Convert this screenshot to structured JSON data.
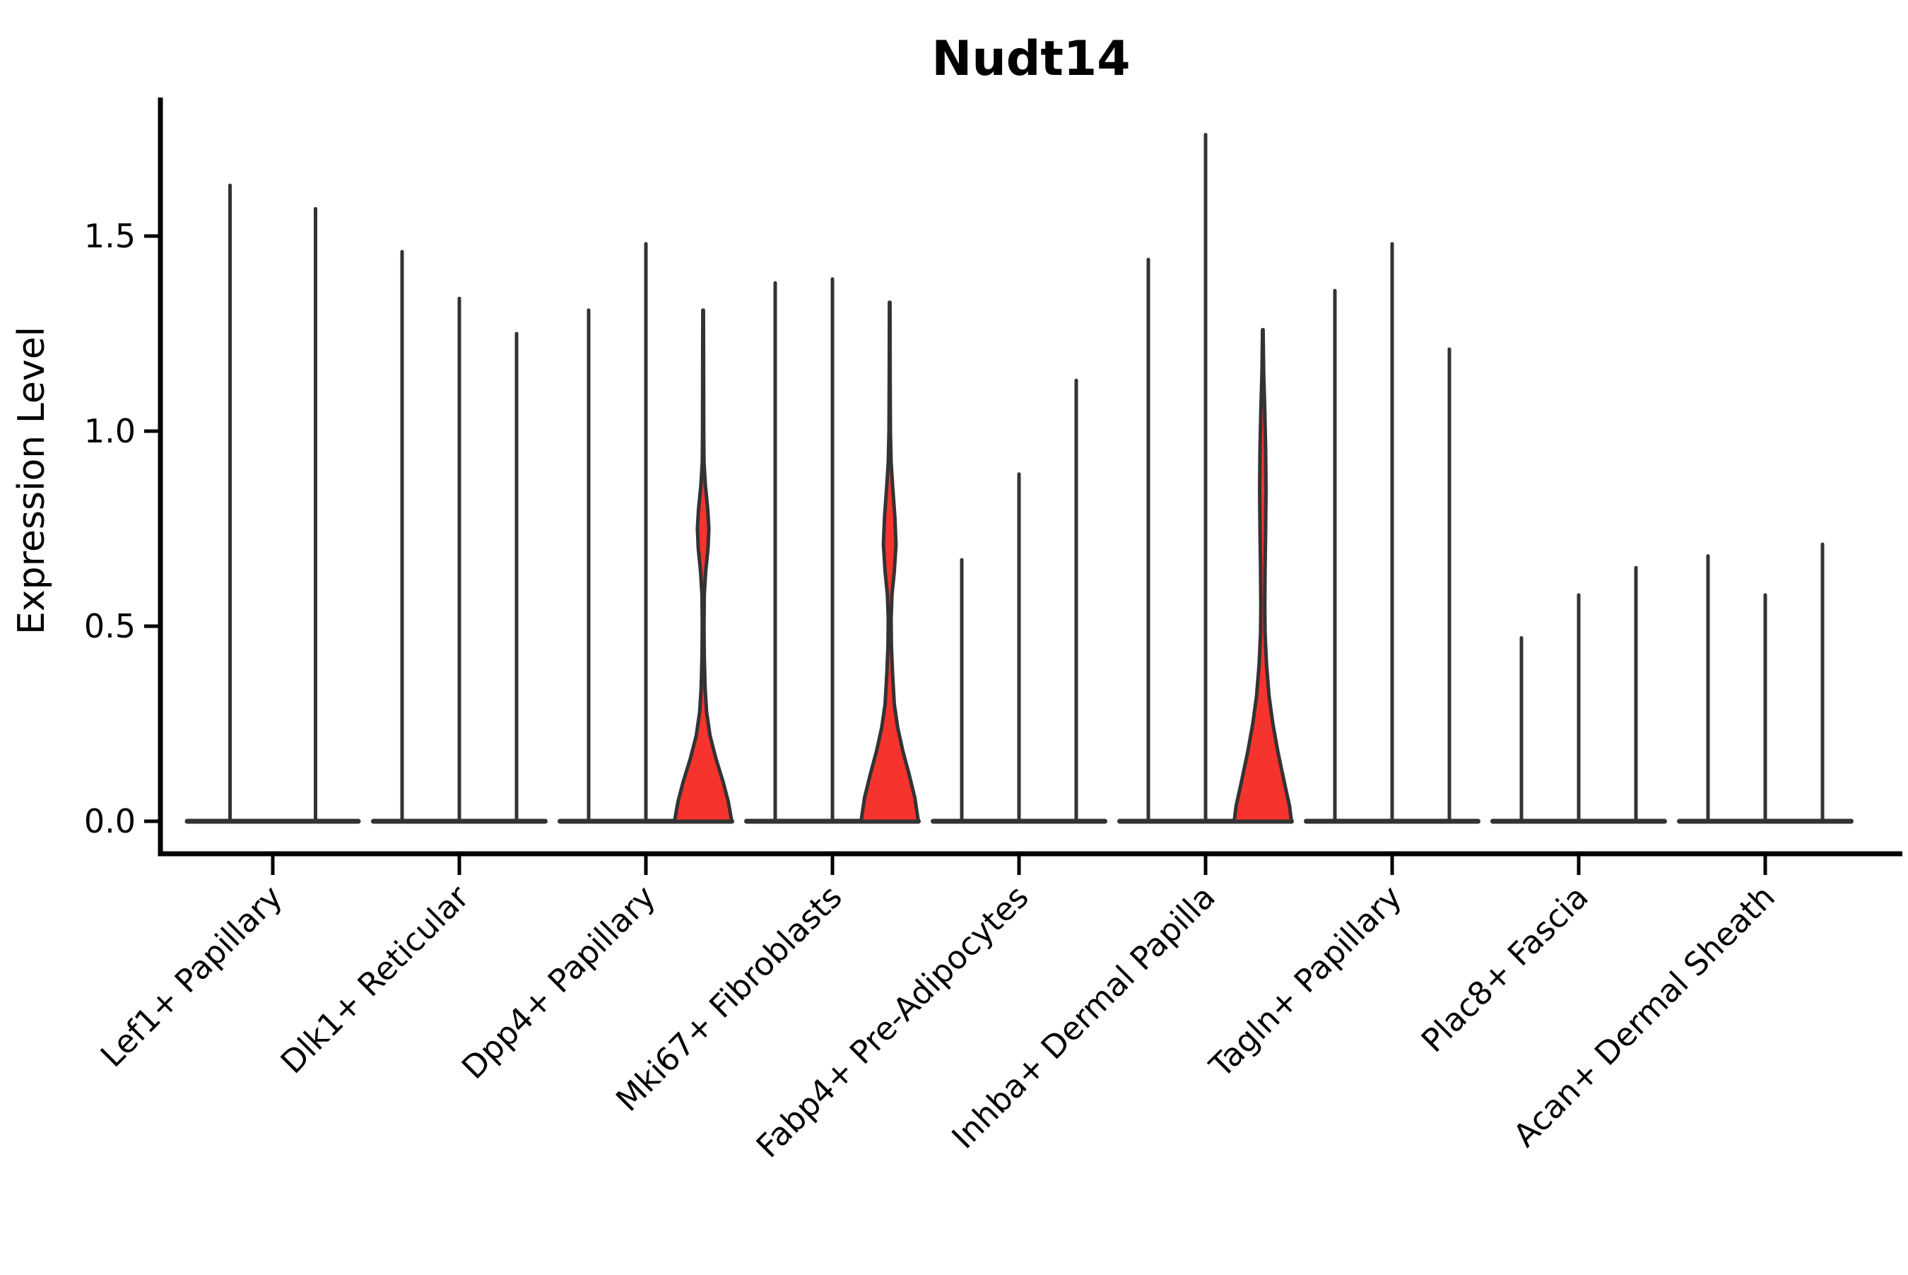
{
  "figure": {
    "background": "#ffffff"
  },
  "chart_data": {
    "type": "violin",
    "title": "Nudt14",
    "xlabel": "",
    "ylabel": "Expression Level",
    "ylim": [
      -0.09,
      1.86
    ],
    "grid": false,
    "legend": "none",
    "ytick_labels": [
      "0.0",
      "0.5",
      "1.0",
      "1.5"
    ],
    "ytick_values": [
      0.0,
      0.5,
      1.0,
      1.5
    ],
    "outline_color": "#333333",
    "highlight_fill_color": "#f7332d",
    "categories": [
      "Lef1+ Papillary",
      "Dlk1+ Reticular",
      "Dpp4+ Papillary",
      "Mki67+ Fibroblasts",
      "Fabp4+ Pre-Adipocytes",
      "Inhba+ Dermal Papilla",
      "Tagln+ Papillary",
      "Plac8+ Fascia",
      "Acan+ Dermal Sheath"
    ],
    "groups": [
      {
        "label": "Lef1+ Papillary",
        "violins": [
          {
            "max": 1.63,
            "highlight": false
          },
          {
            "max": 1.57,
            "highlight": false
          }
        ]
      },
      {
        "label": "Dlk1+ Reticular",
        "violins": [
          {
            "max": 1.46,
            "highlight": false
          },
          {
            "max": 1.34,
            "highlight": false
          },
          {
            "max": 1.25,
            "highlight": false
          }
        ]
      },
      {
        "label": "Dpp4+ Papillary",
        "violins": [
          {
            "max": 1.31,
            "highlight": false
          },
          {
            "max": 1.48,
            "highlight": false
          },
          {
            "max": 1.31,
            "highlight": true,
            "profile": [
              [
                1.31,
                0.01
              ],
              [
                1.2,
                0.015
              ],
              [
                1.0,
                0.02
              ],
              [
                0.92,
                0.03
              ],
              [
                0.86,
                0.08
              ],
              [
                0.8,
                0.16
              ],
              [
                0.75,
                0.2
              ],
              [
                0.7,
                0.17
              ],
              [
                0.64,
                0.09
              ],
              [
                0.58,
                0.04
              ],
              [
                0.5,
                0.03
              ],
              [
                0.42,
                0.04
              ],
              [
                0.34,
                0.07
              ],
              [
                0.28,
                0.12
              ],
              [
                0.22,
                0.24
              ],
              [
                0.16,
                0.45
              ],
              [
                0.1,
                0.7
              ],
              [
                0.05,
                0.88
              ],
              [
                0.0,
                1.0
              ]
            ]
          }
        ]
      },
      {
        "label": "Mki67+ Fibroblasts",
        "violins": [
          {
            "max": 1.38,
            "highlight": false
          },
          {
            "max": 1.39,
            "highlight": false
          },
          {
            "max": 1.33,
            "highlight": true,
            "profile": [
              [
                1.33,
                0.01
              ],
              [
                1.15,
                0.015
              ],
              [
                1.0,
                0.025
              ],
              [
                0.92,
                0.05
              ],
              [
                0.85,
                0.11
              ],
              [
                0.78,
                0.18
              ],
              [
                0.71,
                0.22
              ],
              [
                0.64,
                0.16
              ],
              [
                0.58,
                0.08
              ],
              [
                0.52,
                0.05
              ],
              [
                0.45,
                0.06
              ],
              [
                0.38,
                0.1
              ],
              [
                0.3,
                0.16
              ],
              [
                0.24,
                0.28
              ],
              [
                0.18,
                0.46
              ],
              [
                0.12,
                0.68
              ],
              [
                0.06,
                0.88
              ],
              [
                0.0,
                1.0
              ]
            ]
          }
        ]
      },
      {
        "label": "Fabp4+ Pre-Adipocytes",
        "violins": [
          {
            "max": 0.67,
            "highlight": false
          },
          {
            "max": 0.89,
            "highlight": false
          },
          {
            "max": 1.13,
            "highlight": false
          }
        ]
      },
      {
        "label": "Inhba+ Dermal Papilla",
        "violins": [
          {
            "max": 1.44,
            "highlight": false
          },
          {
            "max": 1.76,
            "highlight": false
          },
          {
            "max": 1.26,
            "highlight": true,
            "profile": [
              [
                1.26,
                0.01
              ],
              [
                1.15,
                0.03
              ],
              [
                1.05,
                0.07
              ],
              [
                0.95,
                0.1
              ],
              [
                0.85,
                0.11
              ],
              [
                0.75,
                0.1
              ],
              [
                0.65,
                0.08
              ],
              [
                0.55,
                0.07
              ],
              [
                0.48,
                0.08
              ],
              [
                0.4,
                0.13
              ],
              [
                0.32,
                0.22
              ],
              [
                0.25,
                0.35
              ],
              [
                0.18,
                0.52
              ],
              [
                0.1,
                0.75
              ],
              [
                0.04,
                0.93
              ],
              [
                0.0,
                1.0
              ]
            ]
          }
        ]
      },
      {
        "label": "Tagln+ Papillary",
        "violins": [
          {
            "max": 1.36,
            "highlight": false
          },
          {
            "max": 1.48,
            "highlight": false
          },
          {
            "max": 1.21,
            "highlight": false
          }
        ]
      },
      {
        "label": "Plac8+ Fascia",
        "violins": [
          {
            "max": 0.47,
            "highlight": false
          },
          {
            "max": 0.58,
            "highlight": false
          },
          {
            "max": 0.65,
            "highlight": false
          }
        ]
      },
      {
        "label": "Acan+ Dermal Sheath",
        "violins": [
          {
            "max": 0.68,
            "highlight": false
          },
          {
            "max": 0.58,
            "highlight": false
          },
          {
            "max": 0.71,
            "highlight": false
          }
        ]
      }
    ]
  }
}
